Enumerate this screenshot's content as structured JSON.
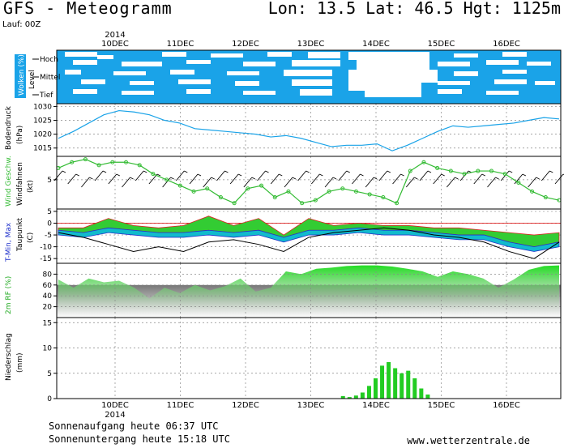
{
  "header": {
    "title": "GFS - Meteogramm",
    "location": "Lon: 13.5 Lat: 46.5 Hgt: 1125m",
    "run": "Lauf: 00Z"
  },
  "footer": {
    "sunrise": "Sonnenaufgang heute 06:37 UTC",
    "sunset": "Sonnenuntergang heute 15:18 UTC",
    "url": "www.wetterzentrale.de"
  },
  "colors": {
    "cloud_blue": "#1aa3e8",
    "pressure_line": "#1aa3e8",
    "wind_line": "#33bb33",
    "tmax_fill": "#33cc33",
    "tmin_fill": "#11bbcc",
    "rh_fill": "#22dd22",
    "precip_bar": "#22cc22",
    "grid": "#888888"
  },
  "x_axis": {
    "year_label": "2014",
    "days": [
      "10DEC",
      "11DEC",
      "12DEC",
      "13DEC",
      "14DEC",
      "15DEC",
      "16DEC"
    ]
  },
  "chart_data": [
    {
      "type": "heatmap",
      "panel": "clouds",
      "ylabel": "Wolken (%)",
      "ylabel2": "Level",
      "levels": [
        "Hoch",
        "Mittel",
        "Tief"
      ]
    },
    {
      "type": "line",
      "panel": "pressure",
      "ylabel": "Bodendruck",
      "ylabel2": "(hPa)",
      "yticks": [
        1015,
        1020,
        1025,
        1030
      ],
      "ylim": [
        1012,
        1031
      ],
      "x": [
        0,
        0.25,
        0.5,
        0.75,
        1,
        1.25,
        1.5,
        1.75,
        2,
        2.25,
        2.5,
        2.75,
        3,
        3.25,
        3.5,
        3.75,
        4,
        4.25,
        4.5,
        4.75,
        5,
        5.25,
        5.5,
        5.75,
        6,
        6.25,
        6.5,
        6.75,
        7,
        7.25,
        7.5,
        7.75,
        8,
        8.25
      ],
      "values": [
        1018.5,
        1021,
        1024,
        1027,
        1028.5,
        1028,
        1027,
        1025,
        1024,
        1022,
        1021.5,
        1021,
        1020.5,
        1020,
        1019,
        1019.5,
        1018.5,
        1017,
        1015.5,
        1016,
        1016,
        1016.5,
        1014,
        1016,
        1018.5,
        1021,
        1023,
        1022.5,
        1023,
        1023.5,
        1024,
        1025,
        1026,
        1025.5
      ]
    },
    {
      "type": "line",
      "panel": "wind",
      "ylabel": "Wind Geschw.",
      "ylabel2": "Windfahnen",
      "ylabel3": "(kt)",
      "yticks": [
        5
      ],
      "ylim": [
        0,
        9
      ],
      "x": [
        0,
        0.25,
        0.5,
        0.75,
        1,
        1.25,
        1.5,
        1.75,
        2,
        2.25,
        2.5,
        2.75,
        3,
        3.25,
        3.5,
        3.75,
        4,
        4.25,
        4.5,
        4.75,
        5,
        5.25,
        5.5,
        5.75,
        6,
        6.25,
        6.5,
        6.75,
        7,
        7.25,
        7.5,
        7.75,
        8,
        8.25,
        8.5,
        8.75,
        9,
        9.25
      ],
      "values": [
        7,
        8,
        8.5,
        7.5,
        8,
        8,
        7.5,
        6,
        5,
        4,
        3,
        3.5,
        2,
        1,
        3.5,
        4,
        2,
        3,
        1,
        1.5,
        3,
        3.5,
        3,
        2.5,
        2,
        1,
        6.5,
        8,
        7,
        6.5,
        6,
        6.5,
        6.5,
        6,
        4.5,
        3,
        2,
        1.5
      ]
    },
    {
      "type": "area",
      "panel": "temperature",
      "ylabel": "T-Min, Max",
      "ylabel2": "Taupunkt",
      "ylabel3": "(C)",
      "yticks": [
        -15,
        -10,
        -5,
        0,
        5
      ],
      "ylim": [
        -17,
        6
      ],
      "x": [
        0,
        0.5,
        1,
        1.5,
        2,
        2.5,
        3,
        3.5,
        4,
        4.5,
        5,
        5.5,
        6,
        6.5,
        7,
        7.5,
        8,
        8.5,
        9,
        9.5,
        10
      ],
      "series": [
        {
          "name": "Max",
          "values": [
            -2,
            -2,
            2,
            -1,
            -2,
            -1,
            3,
            -1,
            2,
            -5,
            2,
            -1,
            0,
            -1,
            -1,
            -2,
            -2,
            -3,
            -4,
            -5,
            -4
          ]
        },
        {
          "name": "Min",
          "values": [
            -3,
            -4,
            -2,
            -3,
            -4,
            -4,
            -3,
            -4,
            -3,
            -6,
            -3,
            -3,
            -2,
            -3,
            -3,
            -4,
            -5,
            -5,
            -8,
            -10,
            -8
          ]
        },
        {
          "name": "Taupunkt",
          "values": [
            -4,
            -6,
            -9,
            -12,
            -10,
            -12,
            -8,
            -7,
            -9,
            -12,
            -6,
            -4,
            -3,
            -2,
            -3,
            -5,
            -6,
            -8,
            -12,
            -15,
            -8
          ]
        }
      ]
    },
    {
      "type": "area",
      "panel": "humidity",
      "ylabel": "2m RF (%)",
      "yticks": [
        20,
        40,
        60,
        80
      ],
      "ylim": [
        0,
        100
      ],
      "x": [
        0,
        0.25,
        0.5,
        0.75,
        1,
        1.25,
        1.5,
        1.75,
        2,
        2.25,
        2.5,
        2.75,
        3,
        3.25,
        3.5,
        3.75,
        4,
        4.25,
        4.5,
        4.75,
        5,
        5.25,
        5.5,
        5.75,
        6,
        6.25,
        6.5,
        6.75,
        7,
        7.25,
        7.5,
        7.75,
        8,
        8.25
      ],
      "values": [
        70,
        55,
        72,
        65,
        68,
        55,
        35,
        55,
        45,
        60,
        50,
        58,
        72,
        48,
        55,
        85,
        80,
        90,
        92,
        95,
        96,
        96,
        94,
        90,
        85,
        75,
        85,
        80,
        72,
        55,
        70,
        88,
        95,
        96
      ]
    },
    {
      "type": "bar",
      "panel": "precipitation",
      "ylabel": "Niederschlag",
      "ylabel2": "(mm)",
      "yticks": [
        0,
        5,
        10,
        15
      ],
      "ylim": [
        0,
        16
      ],
      "x": [
        13.5,
        13.6,
        13.7,
        13.8,
        13.9,
        14.0,
        14.1,
        14.2,
        14.3,
        14.4,
        14.5,
        14.6,
        14.7,
        14.8
      ],
      "values": [
        0.5,
        0.3,
        0.6,
        1.2,
        2.5,
        4,
        6.5,
        7.2,
        6,
        5,
        5.5,
        4,
        2,
        0.8
      ]
    }
  ]
}
